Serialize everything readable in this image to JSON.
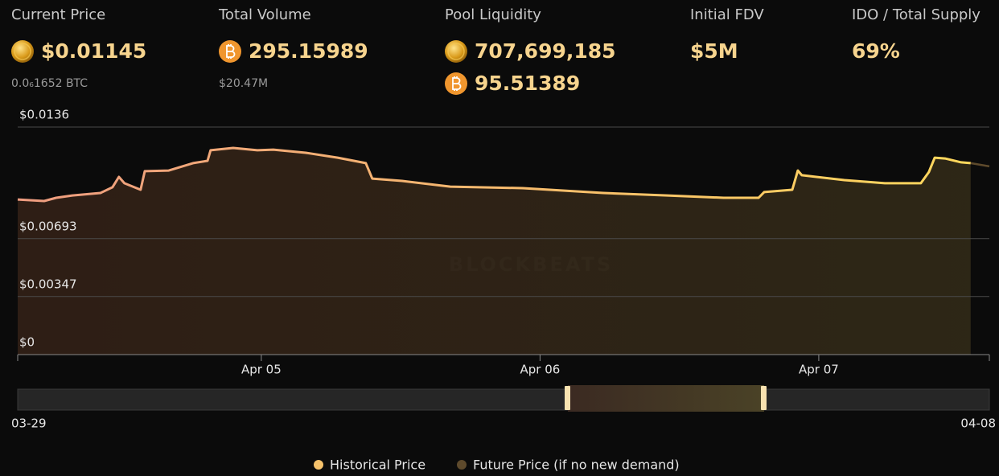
{
  "stats": [
    {
      "label": "Current Price",
      "values": [
        "$0.01145"
      ],
      "sub": "0.0₆1652 BTC"
    },
    {
      "label": "Total Volume",
      "values": [
        "295.15989"
      ],
      "sub": "$20.47M"
    },
    {
      "label": "Pool Liquidity",
      "values": [
        "707,699,185",
        "95.51389"
      ]
    },
    {
      "label": "Initial FDV",
      "values": [
        "$5M"
      ]
    },
    {
      "label": "IDO / Total Supply",
      "values": [
        "69%"
      ]
    }
  ],
  "chart_data": {
    "type": "line",
    "watermark": "BLOCKBEATS",
    "series": [
      {
        "name": "Historical Price",
        "color": "#f5c26b",
        "x": [
          4.126,
          4.221,
          4.264,
          4.322,
          4.423,
          4.466,
          4.489,
          4.509,
          4.567,
          4.582,
          4.668,
          4.755,
          4.807,
          4.818,
          4.899,
          4.986,
          5.043,
          5.159,
          5.274,
          5.375,
          5.398,
          5.505,
          5.678,
          5.938,
          6.227,
          6.457,
          6.659,
          6.784,
          6.804,
          6.905,
          6.925,
          6.939,
          7.092,
          7.237,
          7.366,
          7.395,
          7.416,
          7.453,
          7.511,
          7.545
        ],
        "values": [
          0.00927,
          0.00918,
          0.00937,
          0.00951,
          0.00966,
          0.01,
          0.01062,
          0.01024,
          0.00985,
          0.01096,
          0.011,
          0.01144,
          0.01158,
          0.01221,
          0.01235,
          0.01221,
          0.01225,
          0.01206,
          0.01177,
          0.01144,
          0.01052,
          0.01038,
          0.01004,
          0.00995,
          0.00966,
          0.00951,
          0.00937,
          0.00937,
          0.00971,
          0.00985,
          0.011,
          0.01072,
          0.01043,
          0.01024,
          0.01024,
          0.01091,
          0.01177,
          0.01172,
          0.01149,
          0.01144
        ]
      },
      {
        "name": "Future Price (if no new demand)",
        "color": "#5e4a2c",
        "x": [
          7.545,
          7.612
        ],
        "values": [
          0.01144,
          0.01125
        ]
      }
    ],
    "ylim": [
      0,
      0.0136
    ],
    "yticks": [
      {
        "value": 0,
        "label": "$0"
      },
      {
        "value": 0.00347,
        "label": "$0.00347"
      },
      {
        "value": 0.00693,
        "label": "$0.00693"
      },
      {
        "value": 0.0136,
        "label": "$0.0136"
      }
    ],
    "xlim": [
      4.126,
      7.612
    ],
    "xticks": [
      {
        "value": 5,
        "label": "Apr 05"
      },
      {
        "value": 6,
        "label": "Apr 06"
      },
      {
        "value": 7,
        "label": "Apr 07"
      }
    ],
    "grid": true,
    "navigator": {
      "start": "03-29",
      "end": "04-08"
    }
  }
}
